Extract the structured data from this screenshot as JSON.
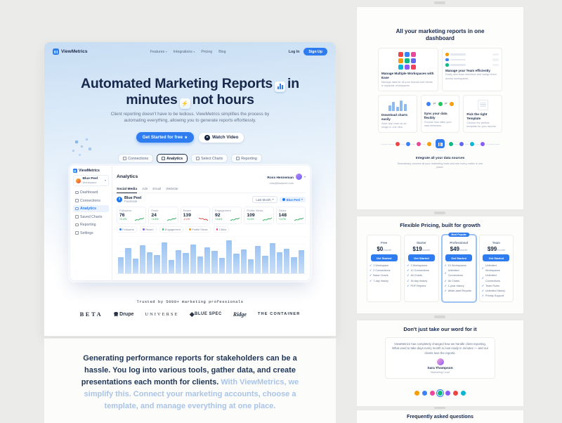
{
  "colors": {
    "accent": "#2e7cf0",
    "navy": "#16284c",
    "canvas": "#ebebe9"
  },
  "nav": {
    "brand": "ViewMetrics",
    "items": [
      "Features",
      "Integrations",
      "Pricing",
      "Blog"
    ],
    "login": "Log In",
    "signup": "Sign Up"
  },
  "hero": {
    "heading_a": "Automated Marketing Reports",
    "heading_b": "in",
    "heading_c": "minutes",
    "heading_d": "not hours",
    "icon_lightning": "⚡",
    "subtext": "Client reporting doesn't have to be tedious. ViewMetrics simplifies the process by automating everything, allowing you to generate reports effortlessly.",
    "cta_primary": "Get Started for free",
    "cta_primary_icon": "★",
    "cta_secondary": "Watch Video",
    "steps": [
      "Connections",
      "Analytics",
      "Select Charts",
      "Reporting"
    ]
  },
  "dashboard": {
    "brand": "ViewMetrics",
    "workspace": {
      "name": "Blue Peel",
      "type": "Workspace"
    },
    "menu": [
      "Dashboard",
      "Connections",
      "Analytics",
      "Saved Charts",
      "Reporting",
      "Settings"
    ],
    "title": "Analytics",
    "user": {
      "name": "Ross Henneman",
      "email": "ross@bluepeel.com"
    },
    "tabs": [
      "Social Media",
      "Ads",
      "Email",
      "Website"
    ],
    "account": {
      "name": "Blue Peel",
      "platform": "Facebook",
      "icon_letter": "f"
    },
    "filters": {
      "period": "Last Month",
      "account": "Blue Peel"
    },
    "stats": [
      {
        "label": "Followers",
        "value": "76",
        "change": "+2.4%",
        "trend": "up"
      },
      {
        "label": "Posts",
        "value": "24",
        "change": "+1.8%",
        "trend": "up"
      },
      {
        "label": "Reach",
        "value": "139",
        "change": "-2.1%",
        "trend": "down"
      },
      {
        "label": "Engagement",
        "value": "92",
        "change": "+3.6%",
        "trend": "up"
      },
      {
        "label": "Profile Views",
        "value": "109",
        "change": "+1.4%",
        "trend": "up"
      },
      {
        "label": "Clicks",
        "value": "148",
        "change": "+4.7%",
        "trend": "up"
      }
    ],
    "legend": [
      {
        "label": "Followers",
        "color": "#3b82f6"
      },
      {
        "label": "Reach",
        "color": "#8b5cf6"
      },
      {
        "label": "Engagement",
        "color": "#22c55e"
      },
      {
        "label": "Profile Views",
        "color": "#f59e0b"
      },
      {
        "label": "Clicks",
        "color": "#ec4899"
      }
    ],
    "chart": {
      "type": "bar",
      "bars": [
        42,
        65,
        38,
        72,
        55,
        48,
        80,
        35,
        60,
        52,
        75,
        44,
        68,
        58,
        40,
        85,
        50,
        62,
        36,
        70,
        46,
        78,
        54,
        64,
        41,
        59
      ]
    }
  },
  "logos": {
    "caption": "Trusted by 5000+ marketing professionals",
    "items": [
      "BETA",
      "Drupe",
      "UNIVERSE",
      "BLUE SPEC",
      "Ridge",
      "THE CONTAINER"
    ]
  },
  "intro": {
    "dark": "Generating performance reports for stakeholders can be a hassle. You log into various tools, gather data, and create presentations each month for clients.",
    "light": " With ViewMetrics, we simplify this. Connect your marketing accounts, choose a template, and manage everything at one place."
  },
  "features": {
    "title": "All your marketing reports in one dashboard",
    "cards": [
      {
        "title": "Manage Multiple Workspaces with Ease",
        "sub": "Manage data for all your brands and clients in separate workspaces."
      },
      {
        "title": "Manage your Team efficiently",
        "sub": "Easily add team members and assign them across workspaces."
      },
      {
        "title": "Download charts easily",
        "sub": "Save any chart as an image in one click."
      },
      {
        "title": "Sync your data flexibly",
        "sub": "Choose how often your data refreshes."
      },
      {
        "title": "Pick the right Template",
        "sub": "Choose the perfect template for your reports."
      },
      {
        "title": "Integrate all your data sources",
        "sub": "Seamlessly connect all your marketing tools and see every metric in one place."
      }
    ],
    "workspace_icon_colors": [
      "#ef4444",
      "#3b82f6",
      "#ec4899",
      "#f59e0b",
      "#10b981",
      "#6366f1",
      "#06b6d4",
      "#8b5cf6",
      "#f43f5e"
    ],
    "team_colors": [
      "#f59e0b",
      "#3b82f6",
      "#10b981"
    ],
    "mini_bars": [
      8,
      13,
      6,
      15,
      10
    ],
    "sync_colors": [
      "#3b82f6",
      "#22c55e",
      "#f59e0b"
    ],
    "integration_colors": [
      "#ef4444",
      "#3b82f6",
      "#ec4899",
      "#f59e0b",
      "#10b981",
      "#6366f1",
      "#06b6d4",
      "#8b5cf6"
    ]
  },
  "pricing": {
    "title": "Flexible Pricing, built for growth",
    "plans": [
      {
        "name": "Free",
        "price": "$0",
        "period": "/month",
        "cta": "Get Started",
        "popular": false,
        "badge": "",
        "features": [
          "1 Workspace",
          "2 Connections",
          "Basic Charts",
          "7-day history"
        ]
      },
      {
        "name": "Starter",
        "price": "$19",
        "period": "/month",
        "cta": "Get Started",
        "popular": false,
        "badge": "",
        "features": [
          "3 Workspaces",
          "10 Connections",
          "All Charts",
          "30-day history",
          "PDF Reports"
        ]
      },
      {
        "name": "Professional",
        "price": "$49",
        "period": "/month",
        "cta": "Get Started",
        "popular": true,
        "badge": "Most Popular",
        "features": [
          "10 Workspaces",
          "Unlimited Connections",
          "All Charts",
          "1-year history",
          "White-label Reports"
        ]
      },
      {
        "name": "Team",
        "price": "$99",
        "period": "/month",
        "cta": "Get Started",
        "popular": false,
        "badge": "",
        "features": [
          "Unlimited Workspaces",
          "Unlimited Connections",
          "Team Roles",
          "Unlimited history",
          "Priority Support"
        ]
      }
    ]
  },
  "testimonials": {
    "title": "Don't just take our word for it",
    "quote": "ViewMetrics has completely changed how we handle client reporting. What used to take days every month is now ready in minutes — and our clients love the reports.",
    "name": "Sara Thompson",
    "role": "Marketing Lead",
    "avatar_colors": [
      "#f59e0b",
      "#3b82f6",
      "#ec4899",
      "#10b981",
      "#8b5cf6",
      "#ef4444",
      "#06b6d4"
    ]
  },
  "faq": {
    "title": "Frequently asked questions"
  }
}
